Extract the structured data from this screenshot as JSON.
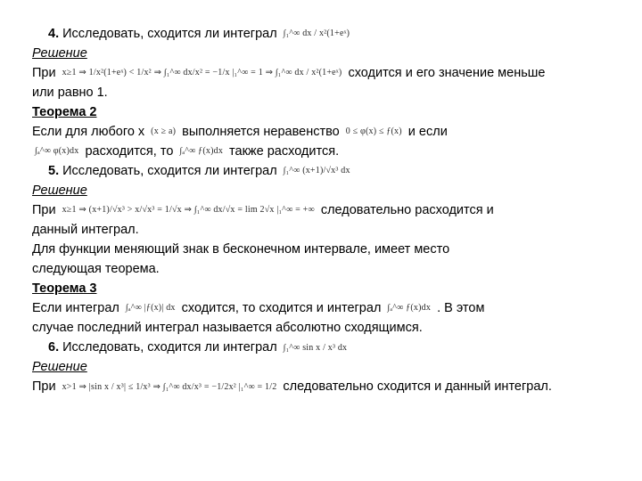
{
  "p4": {
    "num": "4.",
    "prompt": "Исследовать, сходится ли интеграл",
    "int": "∫₁^∞ dx / x²(1+eˣ)",
    "solution_h": "Решение",
    "line1a": "При",
    "math1": "x≥1 ⇒ 1/x²(1+eˣ) < 1/x² ⇒ ∫₁^∞ dx/x² = −1/x |₁^∞ = 1 ⇒ ∫₁^∞ dx / x²(1+eˣ)",
    "line1b": "сходится и его значение меньше",
    "line1c": "или равно 1."
  },
  "th2": {
    "title": "Теорема 2",
    "l1a": "Если для любого x",
    "m1": "(x ≥ a)",
    "l1b": "выполняется неравенство",
    "m2": "0 ≤ φ(x) ≤ ƒ(x)",
    "l1c": "и если",
    "m3": "∫ₐ^∞ φ(x)dx",
    "l2a": "расходится, то",
    "m4": "∫ₐ^∞ ƒ(x)dx",
    "l2b": "также расходится."
  },
  "p5": {
    "num": "5.",
    "prompt": "Исследовать, сходится ли интеграл",
    "int": "∫₁^∞ (x+1)/√x³ dx",
    "solution_h": "Решение",
    "line1a": "При",
    "math1": "x≥1 ⇒ (x+1)/√x³ > x/√x³ = 1/√x ⇒ ∫₁^∞ dx/√x = lim 2√x |₁^∞ = +∞",
    "line1b": "следовательно расходится и",
    "line1c": "данный интеграл.",
    "l2": "Для функции меняющий знак в бесконечном интервале, имеет место",
    "l3": "следующая теорема."
  },
  "th3": {
    "title": "Теорема 3",
    "l1a": "Если интеграл",
    "m1": "∫ₐ^∞ |ƒ(x)| dx",
    "l1b": "сходится, то сходится и интеграл",
    "m2": "∫ₐ^∞ ƒ(x)dx",
    "l1c": ". В этом",
    "l2": "случае последний интеграл называется абсолютно сходящимся."
  },
  "p6": {
    "num": "6.",
    "prompt": "Исследовать, сходится ли интеграл",
    "int": "∫₁^∞ sin x / x³ dx",
    "solution_h": "Решение",
    "line1a": "При",
    "math1": "x>1 ⇒ |sin x / x³| ≤ 1/x³ ⇒ ∫₁^∞ dx/x³ = −1/2x² |₁^∞ = 1/2",
    "line1b": "следовательно сходится и данный интеграл."
  }
}
